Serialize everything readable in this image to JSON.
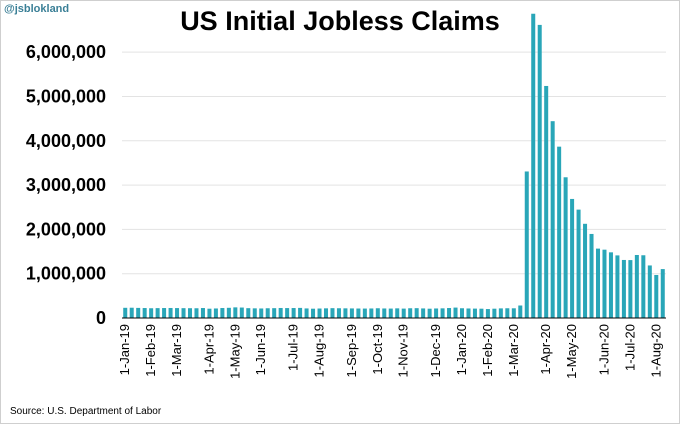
{
  "watermark": "@jsblokland",
  "source": "Source: U.S. Department of Labor",
  "colors": {
    "bar": "#29a6b8",
    "gridline": "#e3e3e3",
    "axis": "#000000"
  },
  "chart_data": {
    "type": "bar",
    "title": "US Initial Jobless Claims",
    "xlabel": "",
    "ylabel": "",
    "ylim": [
      0,
      6500000
    ],
    "yticks": [
      0,
      1000000,
      2000000,
      3000000,
      4000000,
      5000000,
      6000000
    ],
    "ytick_labels": [
      "0",
      "1,000,000",
      "2,000,000",
      "3,000,000",
      "4,000,000",
      "5,000,000",
      "6,000,000"
    ],
    "grid": "horizontal",
    "x_tick_labels": [
      {
        "label": "1-Jan-19",
        "index": 0
      },
      {
        "label": "1-Feb-19",
        "index": 4
      },
      {
        "label": "1-Mar-19",
        "index": 8
      },
      {
        "label": "1-Apr-19",
        "index": 13
      },
      {
        "label": "1-May-19",
        "index": 17
      },
      {
        "label": "1-Jun-19",
        "index": 21
      },
      {
        "label": "1-Jul-19",
        "index": 26
      },
      {
        "label": "1-Aug-19",
        "index": 30
      },
      {
        "label": "1-Sep-19",
        "index": 35
      },
      {
        "label": "1-Oct-19",
        "index": 39
      },
      {
        "label": "1-Nov-19",
        "index": 43
      },
      {
        "label": "1-Dec-19",
        "index": 48
      },
      {
        "label": "1-Jan-20",
        "index": 52
      },
      {
        "label": "1-Feb-20",
        "index": 56
      },
      {
        "label": "1-Mar-20",
        "index": 60
      },
      {
        "label": "1-Apr-20",
        "index": 65
      },
      {
        "label": "1-May-20",
        "index": 69
      },
      {
        "label": "1-Jun-20",
        "index": 74
      },
      {
        "label": "1-Jul-20",
        "index": 78
      },
      {
        "label": "1-Aug-20",
        "index": 82
      }
    ],
    "series": [
      {
        "values": [
          230000,
          232000,
          228000,
          225000,
          220000,
          223000,
          225000,
          226000,
          224000,
          222000,
          221000,
          220000,
          225000,
          210000,
          215000,
          225000,
          230000,
          240000,
          236000,
          222000,
          218000,
          215000,
          220000,
          222000,
          226000,
          224000,
          225000,
          228000,
          216000,
          210000,
          214000,
          218000,
          222000,
          220000,
          218000,
          216000,
          214000,
          213000,
          215000,
          220000,
          215000,
          213000,
          218000,
          212000,
          220000,
          222000,
          216000,
          210000,
          215000,
          218000,
          225000,
          235000,
          220000,
          215000,
          212000,
          210000,
          202000,
          210000,
          217000,
          220000,
          219000,
          282000,
          3307000,
          6867000,
          6615000,
          5237000,
          4442000,
          3867000,
          3176000,
          2687000,
          2446000,
          2126000,
          1897000,
          1566000,
          1542000,
          1482000,
          1413000,
          1310000,
          1307000,
          1422000,
          1416000,
          1186000,
          971000,
          1104000
        ]
      }
    ]
  }
}
